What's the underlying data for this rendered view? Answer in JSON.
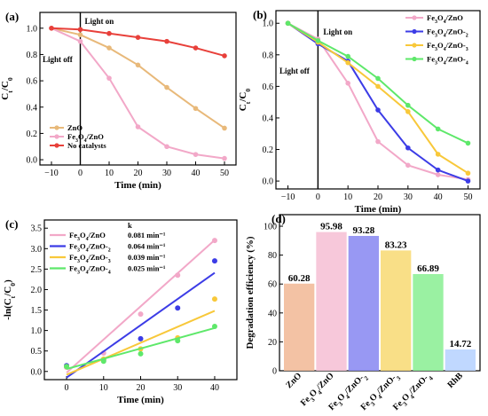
{
  "chart_data": [
    {
      "panel": "(a)",
      "type": "line",
      "xlabel": "Time (min)",
      "ylabel": "C_t/C_0",
      "x_ticks": [
        -10,
        0,
        10,
        20,
        30,
        40,
        50
      ],
      "y_ticks": [
        "0.0",
        "0.2",
        "0.4",
        "0.6",
        "0.8",
        "1.0"
      ],
      "xlim": [
        -14,
        54
      ],
      "ylim": [
        -0.04,
        1.12
      ],
      "annotations": [
        "Light off",
        "Light on"
      ],
      "x": [
        -10,
        0,
        10,
        20,
        30,
        40,
        50
      ],
      "series": [
        {
          "name": "ZnO",
          "color": "#e8b97a",
          "values": [
            1.0,
            0.95,
            0.85,
            0.72,
            0.55,
            0.39,
            0.24
          ]
        },
        {
          "name": "Fe3O4/ZnO",
          "color": "#f2a8c8",
          "values": [
            1.0,
            0.9,
            0.62,
            0.25,
            0.1,
            0.04,
            0.01
          ]
        },
        {
          "name": "No catalysts",
          "color": "#e8403a",
          "values": [
            1.0,
            0.99,
            0.96,
            0.93,
            0.9,
            0.85,
            0.79
          ]
        }
      ]
    },
    {
      "panel": "(b)",
      "type": "line",
      "xlabel": "Time (min)",
      "ylabel": "C_t/C_0",
      "x_ticks": [
        -10,
        0,
        10,
        20,
        30,
        40,
        50
      ],
      "y_ticks": [
        "0.0",
        "0.2",
        "0.4",
        "0.6",
        "0.8",
        "1.0"
      ],
      "xlim": [
        -14,
        54
      ],
      "ylim": [
        -0.05,
        1.08
      ],
      "annotations": [
        "Light off",
        "Light on"
      ],
      "x": [
        -10,
        0,
        10,
        20,
        30,
        40,
        50
      ],
      "series": [
        {
          "name": "Fe3O4/ZnO",
          "color": "#f2a8c8",
          "values": [
            1.0,
            0.9,
            0.62,
            0.25,
            0.1,
            0.04,
            0.01
          ]
        },
        {
          "name": "Fe3O4/ZnO-2",
          "color": "#3c3ce6",
          "values": [
            1.0,
            0.87,
            0.76,
            0.45,
            0.21,
            0.07,
            0.0
          ]
        },
        {
          "name": "Fe3O4/ZnO-3",
          "color": "#f8c83a",
          "values": [
            1.0,
            0.88,
            0.75,
            0.6,
            0.44,
            0.17,
            0.05
          ]
        },
        {
          "name": "Fe3O4/ZnO-4",
          "color": "#5ee86a",
          "values": [
            1.0,
            0.89,
            0.79,
            0.65,
            0.48,
            0.33,
            0.24
          ]
        }
      ]
    },
    {
      "panel": "(c)",
      "type": "scatter",
      "xlabel": "Time (min)",
      "ylabel": "-ln(C_t/C_0)",
      "x_ticks": [
        0,
        10,
        20,
        30,
        40
      ],
      "y_ticks": [
        "0.0",
        "0.5",
        "1.0",
        "1.5",
        "2.0",
        "2.5",
        "3.0",
        "3.5"
      ],
      "xlim": [
        -6,
        46
      ],
      "ylim": [
        -0.2,
        3.7
      ],
      "legend_header": "k",
      "x": [
        0,
        10,
        20,
        30,
        40
      ],
      "series": [
        {
          "name": "Fe3O4/ZnO",
          "k": "0.081 min⁻¹",
          "color": "#f2a8c8",
          "values": [
            0.1,
            0.45,
            1.4,
            2.35,
            3.2
          ],
          "fit": [
            -0.03,
            3.21
          ]
        },
        {
          "name": "Fe3O4/ZnO-2",
          "k": "0.064 min⁻¹",
          "color": "#3c3ce6",
          "values": [
            0.14,
            0.28,
            0.8,
            1.55,
            2.7
          ],
          "fit": [
            -0.15,
            2.41
          ]
        },
        {
          "name": "Fe3O4/ZnO-3",
          "k": "0.039 min⁻¹",
          "color": "#f8c83a",
          "values": [
            0.12,
            0.3,
            0.55,
            0.82,
            1.77
          ],
          "fit": [
            -0.08,
            1.48
          ]
        },
        {
          "name": "Fe3O4/ZnO-4",
          "k": "0.025 min⁻¹",
          "color": "#5ee86a",
          "values": [
            0.12,
            0.25,
            0.43,
            0.75,
            1.1
          ],
          "fit": [
            0.06,
            1.06
          ]
        }
      ]
    },
    {
      "panel": "(d)",
      "type": "bar",
      "ylabel": "Degradation efficiency (%)",
      "y_ticks": [
        "0",
        "20",
        "40",
        "60",
        "80",
        "100"
      ],
      "ylim": [
        0,
        108
      ],
      "categories": [
        "ZnO",
        "Fe3O4/ZnO",
        "Fe3O4/ZnO-2",
        "Fe3O4/ZnO-3",
        "Fe3O4/ZnO-4",
        "RhB"
      ],
      "values": [
        60.28,
        95.98,
        93.28,
        83.23,
        66.89,
        14.72
      ],
      "labels": [
        "60.28",
        "95.98",
        "93.28",
        "83.23",
        "66.89",
        "14.72"
      ],
      "colors": [
        "#f2bb9a",
        "#f6c2d6",
        "#8d8df2",
        "#f8dc7a",
        "#8ff098",
        "#b9d4ff"
      ]
    }
  ]
}
